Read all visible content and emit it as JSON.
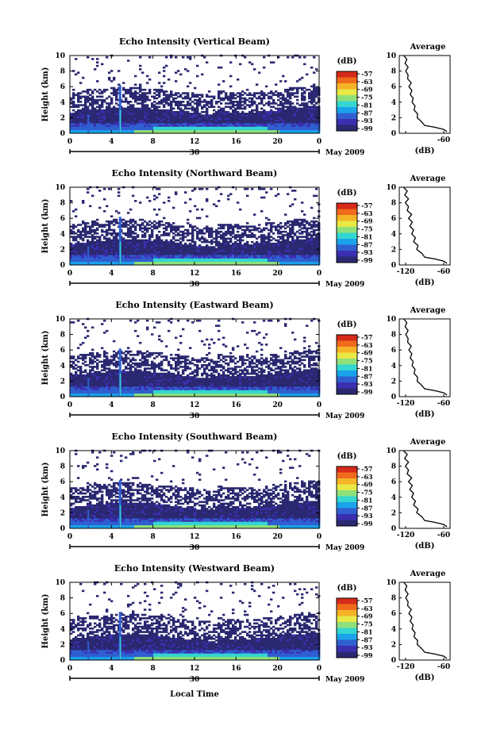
{
  "panels": [
    {
      "title": "Echo Intensity (Vertical Beam)",
      "avg_xticks": [
        "",
        "-60"
      ]
    },
    {
      "title": "Echo Intensity (Northward Beam)",
      "avg_xticks": [
        "-120",
        "-60"
      ]
    },
    {
      "title": "Echo Intensity (Eastward Beam)",
      "avg_xticks": [
        "-120",
        "-60"
      ]
    },
    {
      "title": "Echo Intensity (Southward Beam)",
      "avg_xticks": [
        "-120",
        "-60"
      ]
    },
    {
      "title": "Echo Intensity (Westward Beam)",
      "avg_xticks": [
        "-120",
        "-60"
      ]
    }
  ],
  "ylabel": "Height (km)",
  "xlabel": "Local Time",
  "date_day": "30",
  "date_month": "May 2009",
  "colorbar_unit": "(dB)",
  "colorbar_ticks": [
    "-57",
    "-63",
    "-69",
    "-75",
    "-81",
    "-87",
    "-93",
    "-99"
  ],
  "colorbar_colors": [
    "#d62a1a",
    "#f06a1c",
    "#f5b327",
    "#e9e844",
    "#8fe07a",
    "#33d6d0",
    "#1aa2ea",
    "#2f5fd0",
    "#3b2fb0",
    "#2a2870"
  ],
  "avg_title": "Average",
  "avg_xlabel": "(dB)",
  "xticks": [
    "0",
    "4",
    "8",
    "12",
    "16",
    "20",
    "0"
  ],
  "yticks": [
    "0",
    "2",
    "4",
    "6",
    "8",
    "10"
  ],
  "chart_data": {
    "type": "heatmap",
    "x_range": [
      0,
      24
    ],
    "y_range": [
      0,
      10
    ],
    "clim": [
      -99,
      -57
    ],
    "avg_profile_type": "line",
    "avg_xlim": [
      -130,
      -50
    ],
    "avg_profile": {
      "height": [
        0.2,
        0.5,
        0.8,
        1.0,
        1.5,
        2.0,
        2.5,
        3.0,
        3.5,
        4.0,
        4.5,
        5.0,
        5.5,
        6.0,
        6.5,
        7.0,
        7.5,
        8.0,
        8.5,
        9.0,
        9.5,
        10.0
      ],
      "dB": [
        -55,
        -60,
        -75,
        -90,
        -97,
        -100,
        -103,
        -105,
        -107,
        -108,
        -110,
        -111,
        -112,
        -113,
        -113,
        -115,
        -118,
        -118,
        -118,
        -119,
        -120,
        -121
      ]
    }
  }
}
